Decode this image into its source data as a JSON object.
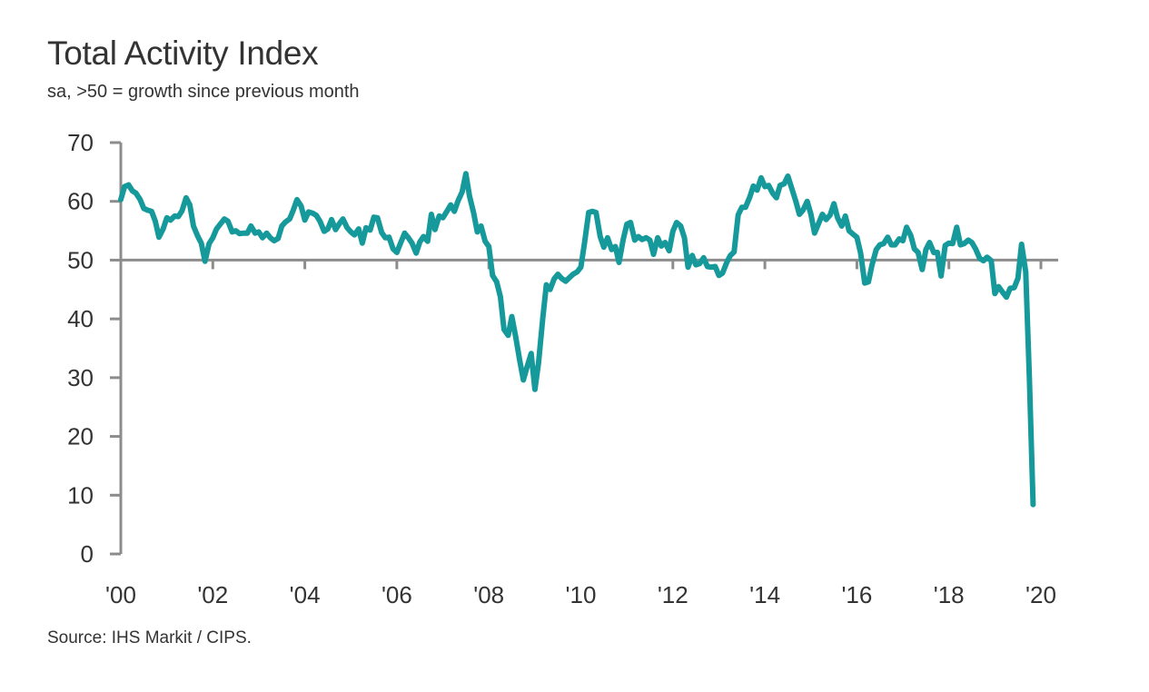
{
  "title": "Total Activity Index",
  "subtitle": "sa, >50 = growth since previous month",
  "source": "Source: IHS Markit / CIPS.",
  "colors": {
    "series": "#16999a",
    "axis": "#8c8c8c",
    "reference_line": "#8c8c8c",
    "text": "#333333"
  },
  "chart_data": {
    "type": "line",
    "title": "Total Activity Index",
    "subtitle": "sa, >50 = growth since previous month",
    "xlabel": "",
    "ylabel": "",
    "xlim": [
      2000.0,
      2020.33
    ],
    "ylim": [
      0,
      70
    ],
    "y_ticks": [
      0,
      10,
      20,
      30,
      40,
      50,
      60,
      70
    ],
    "x_ticks": [
      {
        "value": 2000,
        "label": "'00"
      },
      {
        "value": 2002,
        "label": "'02"
      },
      {
        "value": 2004,
        "label": "'04"
      },
      {
        "value": 2006,
        "label": "'06"
      },
      {
        "value": 2008,
        "label": "'08"
      },
      {
        "value": 2010,
        "label": "'10"
      },
      {
        "value": 2012,
        "label": "'12"
      },
      {
        "value": 2014,
        "label": "'14"
      },
      {
        "value": 2016,
        "label": "'16"
      },
      {
        "value": 2018,
        "label": "'18"
      },
      {
        "value": 2020,
        "label": "'20"
      }
    ],
    "reference_line": 50,
    "grid": false,
    "legend": "none",
    "series": [
      {
        "points": [
          [
            2000.0,
            60.3
          ],
          [
            2000.08,
            62.5
          ],
          [
            2000.17,
            62.8
          ],
          [
            2000.25,
            61.8
          ],
          [
            2000.33,
            61.4
          ],
          [
            2000.42,
            60.3
          ],
          [
            2000.5,
            58.8
          ],
          [
            2000.58,
            58.5
          ],
          [
            2000.67,
            58.3
          ],
          [
            2000.75,
            56.6
          ],
          [
            2000.83,
            53.9
          ],
          [
            2000.92,
            55.3
          ],
          [
            2001.0,
            57.2
          ],
          [
            2001.08,
            56.8
          ],
          [
            2001.17,
            57.5
          ],
          [
            2001.25,
            57.4
          ],
          [
            2001.33,
            58.4
          ],
          [
            2001.42,
            60.6
          ],
          [
            2001.5,
            59.4
          ],
          [
            2001.58,
            55.8
          ],
          [
            2001.67,
            54.1
          ],
          [
            2001.75,
            52.9
          ],
          [
            2001.83,
            49.8
          ],
          [
            2001.92,
            52.8
          ],
          [
            2002.0,
            53.8
          ],
          [
            2002.08,
            55.3
          ],
          [
            2002.17,
            56.2
          ],
          [
            2002.25,
            57.0
          ],
          [
            2002.33,
            56.6
          ],
          [
            2002.42,
            54.8
          ],
          [
            2002.5,
            55.0
          ],
          [
            2002.58,
            54.5
          ],
          [
            2002.67,
            54.6
          ],
          [
            2002.75,
            54.6
          ],
          [
            2002.83,
            55.8
          ],
          [
            2002.92,
            54.6
          ],
          [
            2003.0,
            54.8
          ],
          [
            2003.08,
            53.8
          ],
          [
            2003.17,
            54.6
          ],
          [
            2003.25,
            53.8
          ],
          [
            2003.33,
            53.3
          ],
          [
            2003.42,
            53.7
          ],
          [
            2003.5,
            55.8
          ],
          [
            2003.58,
            56.5
          ],
          [
            2003.67,
            57.0
          ],
          [
            2003.75,
            58.5
          ],
          [
            2003.83,
            60.3
          ],
          [
            2003.92,
            59.2
          ],
          [
            2004.0,
            56.8
          ],
          [
            2004.08,
            58.2
          ],
          [
            2004.17,
            58.0
          ],
          [
            2004.25,
            57.6
          ],
          [
            2004.33,
            56.6
          ],
          [
            2004.42,
            54.9
          ],
          [
            2004.5,
            55.3
          ],
          [
            2004.58,
            56.9
          ],
          [
            2004.67,
            55.2
          ],
          [
            2004.75,
            56.2
          ],
          [
            2004.83,
            57.0
          ],
          [
            2004.92,
            55.5
          ],
          [
            2005.0,
            54.8
          ],
          [
            2005.08,
            54.3
          ],
          [
            2005.17,
            55.3
          ],
          [
            2005.25,
            52.9
          ],
          [
            2005.33,
            55.5
          ],
          [
            2005.42,
            55.1
          ],
          [
            2005.5,
            57.3
          ],
          [
            2005.58,
            57.2
          ],
          [
            2005.67,
            54.7
          ],
          [
            2005.75,
            53.8
          ],
          [
            2005.83,
            53.9
          ],
          [
            2005.92,
            51.9
          ],
          [
            2006.0,
            51.3
          ],
          [
            2006.08,
            52.9
          ],
          [
            2006.17,
            54.6
          ],
          [
            2006.25,
            53.8
          ],
          [
            2006.33,
            52.9
          ],
          [
            2006.42,
            51.2
          ],
          [
            2006.5,
            53.1
          ],
          [
            2006.58,
            54.0
          ],
          [
            2006.67,
            53.2
          ],
          [
            2006.75,
            57.8
          ],
          [
            2006.83,
            55.2
          ],
          [
            2006.92,
            57.5
          ],
          [
            2007.0,
            57.2
          ],
          [
            2007.08,
            58.2
          ],
          [
            2007.17,
            59.4
          ],
          [
            2007.25,
            58.3
          ],
          [
            2007.33,
            60.1
          ],
          [
            2007.42,
            61.6
          ],
          [
            2007.5,
            64.7
          ],
          [
            2007.58,
            60.9
          ],
          [
            2007.67,
            58.0
          ],
          [
            2007.75,
            54.8
          ],
          [
            2007.83,
            55.8
          ],
          [
            2007.92,
            53.2
          ],
          [
            2008.0,
            52.3
          ],
          [
            2008.08,
            47.4
          ],
          [
            2008.17,
            46.3
          ],
          [
            2008.25,
            43.8
          ],
          [
            2008.33,
            38.2
          ],
          [
            2008.42,
            37.2
          ],
          [
            2008.5,
            40.4
          ],
          [
            2008.58,
            37.1
          ],
          [
            2008.67,
            33.0
          ],
          [
            2008.75,
            29.6
          ],
          [
            2008.83,
            31.8
          ],
          [
            2008.92,
            34.1
          ],
          [
            2009.0,
            28.0
          ],
          [
            2009.08,
            32.5
          ],
          [
            2009.17,
            40.0
          ],
          [
            2009.25,
            45.8
          ],
          [
            2009.33,
            45.0
          ],
          [
            2009.42,
            46.8
          ],
          [
            2009.5,
            47.6
          ],
          [
            2009.58,
            46.9
          ],
          [
            2009.67,
            46.4
          ],
          [
            2009.75,
            47.0
          ],
          [
            2009.83,
            47.6
          ],
          [
            2009.92,
            48.0
          ],
          [
            2010.0,
            48.8
          ],
          [
            2010.08,
            53.0
          ],
          [
            2010.17,
            58.1
          ],
          [
            2010.25,
            58.3
          ],
          [
            2010.33,
            58.1
          ],
          [
            2010.42,
            54.0
          ],
          [
            2010.5,
            52.2
          ],
          [
            2010.58,
            53.8
          ],
          [
            2010.67,
            51.8
          ],
          [
            2010.75,
            52.3
          ],
          [
            2010.83,
            49.6
          ],
          [
            2010.92,
            53.5
          ],
          [
            2011.0,
            56.1
          ],
          [
            2011.08,
            56.4
          ],
          [
            2011.17,
            53.4
          ],
          [
            2011.25,
            54.0
          ],
          [
            2011.33,
            53.5
          ],
          [
            2011.42,
            53.8
          ],
          [
            2011.5,
            53.4
          ],
          [
            2011.58,
            51.0
          ],
          [
            2011.67,
            53.8
          ],
          [
            2011.75,
            52.4
          ],
          [
            2011.83,
            53.0
          ],
          [
            2011.92,
            51.6
          ],
          [
            2012.0,
            54.9
          ],
          [
            2012.08,
            56.4
          ],
          [
            2012.17,
            55.8
          ],
          [
            2012.25,
            53.8
          ],
          [
            2012.33,
            48.8
          ],
          [
            2012.42,
            50.8
          ],
          [
            2012.5,
            49.2
          ],
          [
            2012.58,
            49.4
          ],
          [
            2012.67,
            50.4
          ],
          [
            2012.75,
            48.9
          ],
          [
            2012.83,
            48.8
          ],
          [
            2012.92,
            48.9
          ],
          [
            2013.0,
            47.4
          ],
          [
            2013.08,
            47.8
          ],
          [
            2013.17,
            49.6
          ],
          [
            2013.25,
            50.8
          ],
          [
            2013.33,
            51.4
          ],
          [
            2013.42,
            57.7
          ],
          [
            2013.5,
            59.0
          ],
          [
            2013.58,
            59.0
          ],
          [
            2013.67,
            60.7
          ],
          [
            2013.75,
            62.6
          ],
          [
            2013.83,
            61.9
          ],
          [
            2013.92,
            64.0
          ],
          [
            2014.0,
            62.5
          ],
          [
            2014.08,
            62.7
          ],
          [
            2014.17,
            61.4
          ],
          [
            2014.25,
            60.6
          ],
          [
            2014.33,
            62.7
          ],
          [
            2014.42,
            63.0
          ],
          [
            2014.5,
            64.3
          ],
          [
            2014.58,
            62.3
          ],
          [
            2014.67,
            60.1
          ],
          [
            2014.75,
            57.8
          ],
          [
            2014.83,
            58.5
          ],
          [
            2014.92,
            60.0
          ],
          [
            2015.0,
            57.8
          ],
          [
            2015.08,
            54.6
          ],
          [
            2015.17,
            56.3
          ],
          [
            2015.25,
            57.8
          ],
          [
            2015.33,
            56.9
          ],
          [
            2015.42,
            57.7
          ],
          [
            2015.5,
            59.6
          ],
          [
            2015.58,
            57.2
          ],
          [
            2015.67,
            55.8
          ],
          [
            2015.75,
            57.5
          ],
          [
            2015.83,
            55.0
          ],
          [
            2015.92,
            54.4
          ],
          [
            2016.0,
            53.9
          ],
          [
            2016.08,
            51.2
          ],
          [
            2016.17,
            46.1
          ],
          [
            2016.25,
            46.3
          ],
          [
            2016.33,
            49.2
          ],
          [
            2016.42,
            51.8
          ],
          [
            2016.5,
            52.6
          ],
          [
            2016.58,
            52.8
          ],
          [
            2016.67,
            53.9
          ],
          [
            2016.75,
            52.6
          ],
          [
            2016.83,
            52.6
          ],
          [
            2016.92,
            53.6
          ],
          [
            2017.0,
            53.3
          ],
          [
            2017.08,
            55.6
          ],
          [
            2017.17,
            54.2
          ],
          [
            2017.25,
            51.9
          ],
          [
            2017.33,
            51.3
          ],
          [
            2017.42,
            48.4
          ],
          [
            2017.5,
            51.8
          ],
          [
            2017.58,
            53.0
          ],
          [
            2017.67,
            51.3
          ],
          [
            2017.75,
            51.3
          ],
          [
            2017.83,
            47.3
          ],
          [
            2017.92,
            52.5
          ],
          [
            2018.0,
            52.9
          ],
          [
            2018.08,
            52.8
          ],
          [
            2018.17,
            55.6
          ],
          [
            2018.25,
            52.6
          ],
          [
            2018.33,
            52.8
          ],
          [
            2018.42,
            53.4
          ],
          [
            2018.5,
            53.0
          ],
          [
            2018.58,
            51.9
          ],
          [
            2018.67,
            50.3
          ],
          [
            2018.75,
            49.9
          ],
          [
            2018.83,
            50.5
          ],
          [
            2018.92,
            49.9
          ],
          [
            2019.0,
            44.3
          ],
          [
            2019.08,
            45.5
          ],
          [
            2019.17,
            44.5
          ],
          [
            2019.25,
            43.7
          ],
          [
            2019.33,
            45.2
          ],
          [
            2019.42,
            45.3
          ],
          [
            2019.5,
            46.9
          ],
          [
            2019.58,
            52.7
          ],
          [
            2019.67,
            48.0
          ],
          [
            2019.75,
            30.0
          ],
          [
            2019.83,
            8.4
          ]
        ]
      }
    ]
  }
}
